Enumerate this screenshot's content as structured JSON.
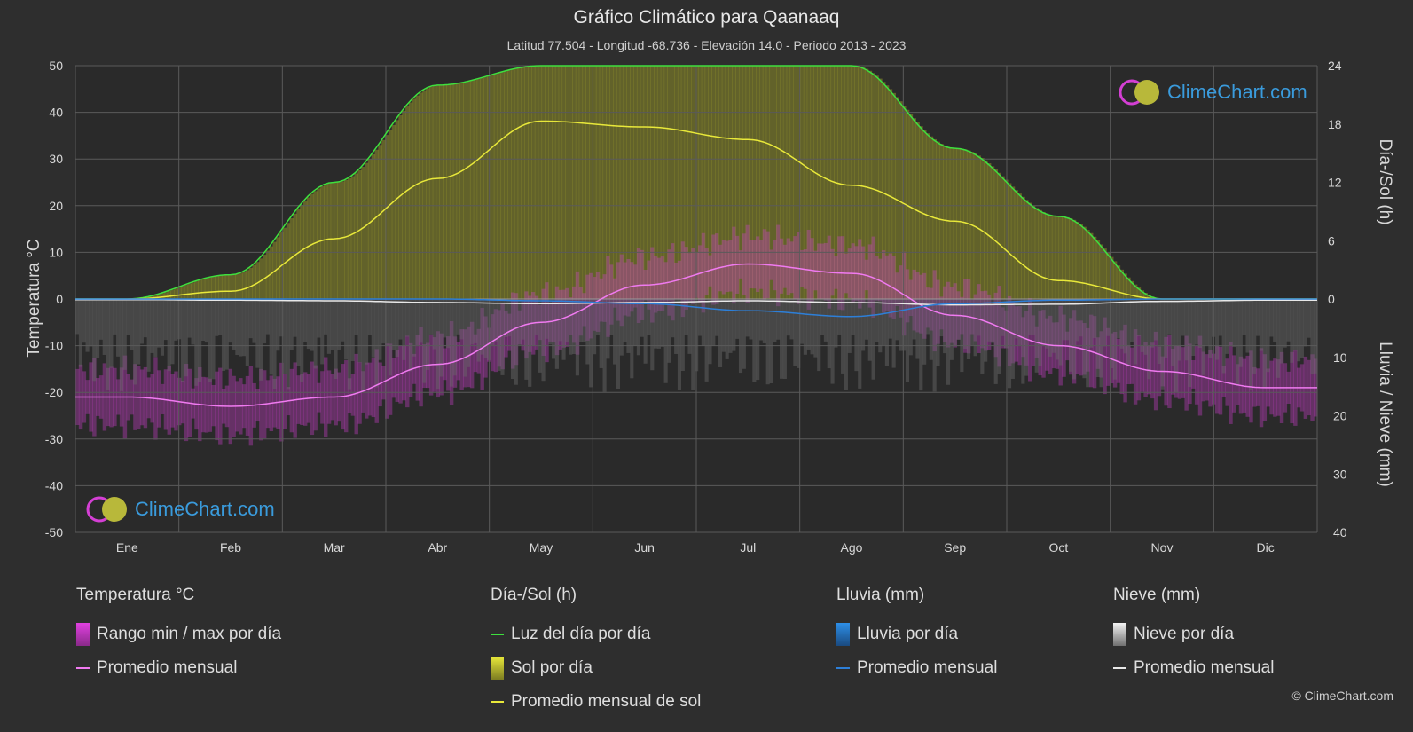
{
  "title": "Gráfico Climático para Qaanaaq",
  "subtitle": "Latitud 77.504 - Longitud -68.736 - Elevación 14.0 - Periodo 2013 - 2023",
  "colors": {
    "background": "#2e2e2e",
    "grid": "#5a5a5a",
    "daylight": "#3ee03e",
    "sunshine": "#e8e83a",
    "sunshine_fill": "#8f8f2a",
    "temp_range": "#d43fd4",
    "temp_avg": "#f07af0",
    "rain": "#2d7fd8",
    "snow": "#e8e8e8",
    "logo_text": "#3a9bdc"
  },
  "chart_data": {
    "type": "line",
    "categories": [
      "Ene",
      "Feb",
      "Mar",
      "Abr",
      "May",
      "Jun",
      "Jul",
      "Ago",
      "Sep",
      "Oct",
      "Nov",
      "Dic"
    ],
    "y_left": {
      "label": "Temperatura °C",
      "ticks": [
        "50",
        "40",
        "30",
        "20",
        "10",
        "0",
        "-10",
        "-20",
        "-30",
        "-40",
        "-50"
      ],
      "range": [
        -50,
        50
      ]
    },
    "y_right_top": {
      "label": "Día-/Sol (h)",
      "ticks": [
        "24",
        "18",
        "12",
        "6",
        "0"
      ],
      "range": [
        0,
        24
      ]
    },
    "y_right_bottom": {
      "label": "Lluvia / Nieve (mm)",
      "ticks": [
        "10",
        "20",
        "30",
        "40"
      ],
      "range": [
        0,
        40
      ]
    },
    "series": [
      {
        "name": "Luz del día por día",
        "unit": "h",
        "values": [
          0,
          2.5,
          12.0,
          22.0,
          24,
          24,
          24,
          24,
          15.5,
          8.5,
          0,
          0
        ]
      },
      {
        "name": "Promedio mensual de sol",
        "unit": "h",
        "values": [
          0,
          0.8,
          6.2,
          12.4,
          18.3,
          17.7,
          16.4,
          11.7,
          8.0,
          1.9,
          0,
          0
        ]
      },
      {
        "name": "Temperatura promedio mensual",
        "unit": "°C",
        "values": [
          -21,
          -23,
          -21,
          -14,
          -5,
          3,
          7.5,
          5.5,
          -3.5,
          -10,
          -15.5,
          -19
        ]
      },
      {
        "name": "Lluvia promedio mensual",
        "unit": "mm",
        "values": [
          0,
          0,
          0,
          0,
          0.3,
          0.8,
          2.0,
          3.0,
          0.8,
          0.2,
          0,
          0
        ]
      },
      {
        "name": "Nieve promedio mensual",
        "unit": "mm",
        "values": [
          0.1,
          0.2,
          0.3,
          0.6,
          0.8,
          0.6,
          0.3,
          0.6,
          1.0,
          0.9,
          0.4,
          0.2
        ]
      }
    ]
  },
  "legend": {
    "temp": {
      "title": "Temperatura °C",
      "items": [
        "Rango min / max por día",
        "Promedio mensual"
      ]
    },
    "sun": {
      "title": "Día-/Sol (h)",
      "items": [
        "Luz del día por día",
        "Sol por día",
        "Promedio mensual de sol"
      ]
    },
    "rain": {
      "title": "Lluvia (mm)",
      "items": [
        "Lluvia por día",
        "Promedio mensual"
      ]
    },
    "snow": {
      "title": "Nieve (mm)",
      "items": [
        "Nieve por día",
        "Promedio mensual"
      ]
    }
  },
  "logo": "ClimeChart.com",
  "copyright": "© ClimeChart.com"
}
